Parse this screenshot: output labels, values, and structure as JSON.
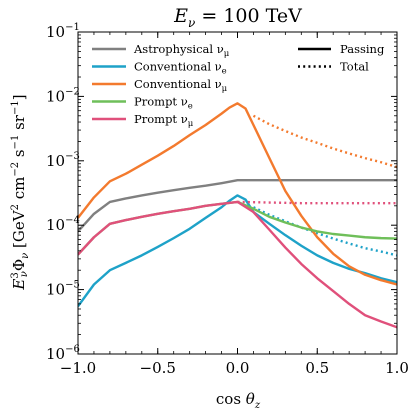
{
  "chart_data": {
    "type": "line",
    "title": "E_ν = 100 TeV",
    "xlabel": "cos θ_z",
    "ylabel": "E_ν^3 Φ_ν [GeV^2 cm^-2 s^-1 sr^-1]",
    "xlim": [
      -1.0,
      1.0
    ],
    "ylim": [
      1e-06,
      0.1
    ],
    "yscale": "log",
    "x_ticks": [
      -1.0,
      -0.5,
      0.0,
      0.5,
      1.0
    ],
    "x_tick_labels": [
      "−1.0",
      "−0.5",
      "0.0",
      "0.5",
      "1.0"
    ],
    "y_ticks": [
      1e-06,
      1e-05,
      0.0001,
      0.001,
      0.01,
      0.1
    ],
    "y_tick_bases": [
      "10",
      "10",
      "10",
      "10",
      "10",
      "10"
    ],
    "y_tick_exps": [
      "−6",
      "−5",
      "−4",
      "−3",
      "−2",
      "−1"
    ],
    "legend_location": "top",
    "line_style_legend": [
      {
        "name": "Passing",
        "dash": "solid"
      },
      {
        "name": "Total",
        "dash": "dotted"
      }
    ],
    "series": [
      {
        "name": "Astrophysical ν_μ",
        "legend_base": "Astrophysical ν",
        "legend_sub": "μ",
        "color": "#808080",
        "passing": {
          "x": [
            -1.0,
            -0.9,
            -0.8,
            -0.7,
            -0.6,
            -0.5,
            -0.4,
            -0.3,
            -0.2,
            -0.1,
            0.0,
            0.1,
            0.2,
            0.3,
            0.5,
            0.7,
            1.0
          ],
          "y": [
            8e-05,
            0.00015,
            0.00023,
            0.00026,
            0.00029,
            0.00032,
            0.00035,
            0.00038,
            0.00041,
            0.00045,
            0.0005,
            0.0005,
            0.0005,
            0.0005,
            0.0005,
            0.0005,
            0.0005
          ]
        },
        "total": null
      },
      {
        "name": "Conventional ν_e",
        "legend_base": "Conventional ν",
        "legend_sub": "e",
        "color": "#1ea2c8",
        "passing": {
          "x": [
            -1.0,
            -0.9,
            -0.8,
            -0.7,
            -0.6,
            -0.5,
            -0.4,
            -0.3,
            -0.2,
            -0.1,
            -0.05,
            0.0,
            0.05,
            0.1,
            0.2,
            0.3,
            0.4,
            0.5,
            0.6,
            0.7,
            0.8,
            0.9,
            1.0
          ],
          "y": [
            5.5e-06,
            1.2e-05,
            2e-05,
            2.6e-05,
            3.4e-05,
            4.6e-05,
            6.3e-05,
            8.8e-05,
            0.00013,
            0.00019,
            0.00024,
            0.00029,
            0.00025,
            0.00016,
            0.000105,
            7e-05,
            4.8e-05,
            3.4e-05,
            2.6e-05,
            2.1e-05,
            1.8e-05,
            1.5e-05,
            1.3e-05
          ]
        },
        "total": {
          "x": [
            0.1,
            0.2,
            0.3,
            0.4,
            0.5,
            0.6,
            0.7,
            0.8,
            0.9,
            1.0
          ],
          "y": [
            0.00019,
            0.000145,
            0.000115,
            9.2e-05,
            7.5e-05,
            6.2e-05,
            5.2e-05,
            4.4e-05,
            3.9e-05,
            3.4e-05
          ]
        }
      },
      {
        "name": "Conventional ν_μ",
        "legend_base": "Conventional ν",
        "legend_sub": "μ",
        "color": "#f37a2e",
        "passing": {
          "x": [
            -1.0,
            -0.9,
            -0.8,
            -0.7,
            -0.6,
            -0.5,
            -0.4,
            -0.3,
            -0.2,
            -0.1,
            -0.05,
            0.0,
            0.05,
            0.1,
            0.2,
            0.3,
            0.4,
            0.5,
            0.6,
            0.7,
            0.8,
            0.9,
            1.0
          ],
          "y": [
            0.00013,
            0.00027,
            0.00048,
            0.00063,
            0.00087,
            0.0012,
            0.0017,
            0.0025,
            0.0036,
            0.0054,
            0.0067,
            0.0078,
            0.0065,
            0.0036,
            0.0011,
            0.00034,
            0.00014,
            6.5e-05,
            3.6e-05,
            2.3e-05,
            1.7e-05,
            1.4e-05,
            1.2e-05
          ]
        },
        "total": {
          "x": [
            0.1,
            0.2,
            0.3,
            0.4,
            0.5,
            0.6,
            0.7,
            0.8,
            0.9,
            1.0
          ],
          "y": [
            0.005,
            0.0037,
            0.0029,
            0.0023,
            0.0019,
            0.00155,
            0.0013,
            0.0011,
            0.00095,
            0.0008
          ]
        }
      },
      {
        "name": "Prompt ν_e",
        "legend_base": "Prompt ν",
        "legend_sub": "e",
        "color": "#6fbf5a",
        "passing": {
          "x": [
            -1.0,
            -0.9,
            -0.8,
            -0.7,
            -0.6,
            -0.5,
            -0.4,
            -0.3,
            -0.2,
            -0.1,
            0.0,
            0.1,
            0.2,
            0.3,
            0.4,
            0.5,
            0.6,
            0.7,
            0.8,
            0.9,
            1.0
          ],
          "y": [
            3.5e-05,
            6.5e-05,
            0.000105,
            0.00012,
            0.000135,
            0.00015,
            0.000165,
            0.00018,
            0.0002,
            0.000215,
            0.00023,
            0.00018,
            0.000135,
            0.00011,
            9.2e-05,
            8e-05,
            7.3e-05,
            6.9e-05,
            6.5e-05,
            6.3e-05,
            6.2e-05
          ]
        },
        "total": null
      },
      {
        "name": "Prompt ν_μ",
        "legend_base": "Prompt ν",
        "legend_sub": "μ",
        "color": "#e0507b",
        "passing": {
          "x": [
            -1.0,
            -0.9,
            -0.8,
            -0.7,
            -0.6,
            -0.5,
            -0.4,
            -0.3,
            -0.2,
            -0.1,
            0.0,
            0.1,
            0.2,
            0.3,
            0.4,
            0.5,
            0.6,
            0.7,
            0.8,
            0.9,
            1.0
          ],
          "y": [
            3.5e-05,
            6.5e-05,
            0.000105,
            0.00012,
            0.000135,
            0.00015,
            0.000165,
            0.00018,
            0.0002,
            0.000215,
            0.00023,
            0.00016,
            8.5e-05,
            4.5e-05,
            2.5e-05,
            1.5e-05,
            9.5e-06,
            6e-06,
            4e-06,
            3.2e-06,
            2.6e-06
          ]
        },
        "total": {
          "x": [
            0.0,
            0.2,
            0.4,
            0.6,
            0.8,
            1.0
          ],
          "y": [
            0.00023,
            0.000225,
            0.00022,
            0.00022,
            0.00022,
            0.00022
          ]
        }
      }
    ]
  }
}
